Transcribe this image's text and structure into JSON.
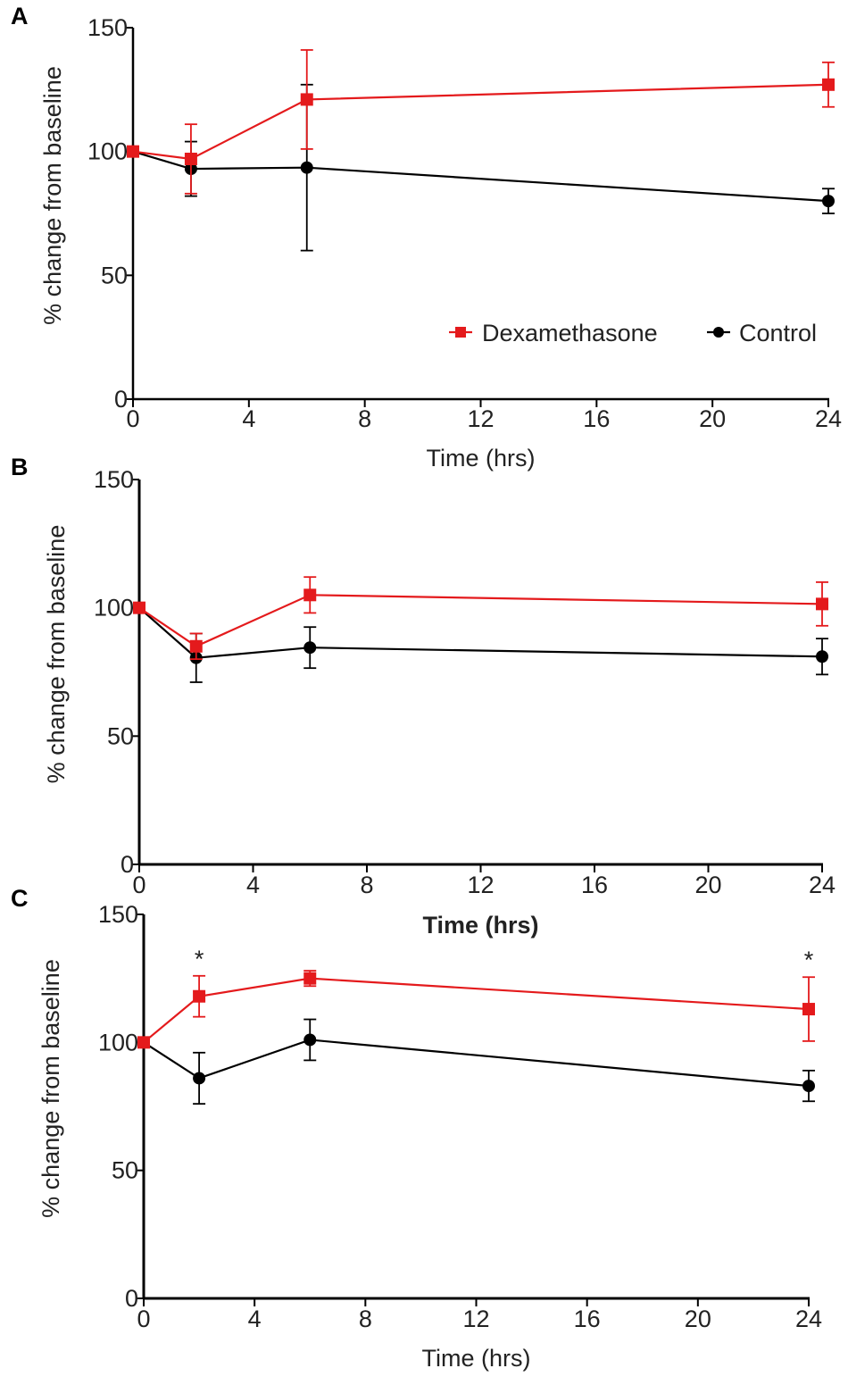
{
  "chart_data": [
    {
      "panel": "A",
      "type": "line",
      "xlabel": "Time (hrs)",
      "ylabel": "% change from baseline",
      "xlim": [
        0,
        24
      ],
      "ylim": [
        0,
        150
      ],
      "xticks": [
        "0",
        "4",
        "8",
        "12",
        "16",
        "20",
        "24"
      ],
      "yticks": [
        "0",
        "50",
        "100",
        "150"
      ],
      "x": [
        0,
        2,
        6,
        24
      ],
      "series": [
        {
          "name": "Dexamethasone",
          "color": "#e41a1c",
          "marker": "square",
          "values": [
            100,
            97,
            121,
            127
          ],
          "errors": [
            0,
            14,
            20,
            9
          ]
        },
        {
          "name": "Control",
          "color": "#000000",
          "marker": "circle",
          "values": [
            100,
            93,
            93.5,
            80
          ],
          "errors": [
            0,
            11,
            33.5,
            5
          ]
        }
      ],
      "legend": [
        "Dexamethasone",
        "Control"
      ],
      "annotations": []
    },
    {
      "panel": "B",
      "type": "line",
      "xlabel": "Time (hrs)",
      "ylabel": "% change from baseline",
      "xlim": [
        0,
        24
      ],
      "ylim": [
        0,
        150
      ],
      "xticks": [
        "0",
        "4",
        "8",
        "12",
        "16",
        "20",
        "24"
      ],
      "yticks": [
        "0",
        "50",
        "100",
        "150"
      ],
      "x": [
        0,
        2,
        6,
        24
      ],
      "series": [
        {
          "name": "Dexamethasone",
          "color": "#e41a1c",
          "marker": "square",
          "values": [
            100,
            85,
            105,
            101.5
          ],
          "errors": [
            0,
            5,
            7,
            8.5
          ]
        },
        {
          "name": "Control",
          "color": "#000000",
          "marker": "circle",
          "values": [
            100,
            80.5,
            84.5,
            81
          ],
          "errors": [
            0,
            9.5,
            8,
            7
          ]
        }
      ],
      "legend": [],
      "annotations": []
    },
    {
      "panel": "C",
      "type": "line",
      "xlabel": "Time (hrs)",
      "ylabel": "% change from baseline",
      "xlim": [
        0,
        24
      ],
      "ylim": [
        0,
        150
      ],
      "xticks": [
        "0",
        "4",
        "8",
        "12",
        "16",
        "20",
        "24"
      ],
      "yticks": [
        "0",
        "50",
        "100",
        "150"
      ],
      "x": [
        0,
        2,
        6,
        24
      ],
      "series": [
        {
          "name": "Dexamethasone",
          "color": "#e41a1c",
          "marker": "square",
          "values": [
            100,
            118,
            125,
            113
          ],
          "errors": [
            0,
            8,
            3,
            12.5
          ]
        },
        {
          "name": "Control",
          "color": "#000000",
          "marker": "circle",
          "values": [
            100,
            86,
            101,
            83
          ],
          "errors": [
            0,
            10,
            8,
            6
          ]
        }
      ],
      "legend": [],
      "annotations": [
        {
          "x": 2,
          "text": "*"
        },
        {
          "x": 24,
          "text": "*"
        }
      ]
    }
  ]
}
